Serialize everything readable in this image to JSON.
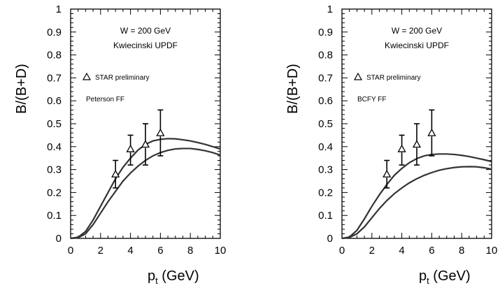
{
  "chart_data": [
    {
      "type": "line",
      "xlabel": "p",
      "xlabel_sub": "t",
      "xlabel_unit": " (GeV)",
      "ylabel": "B/(B+D)",
      "xlim": [
        0,
        10
      ],
      "ylim": [
        0,
        1
      ],
      "xticks": [
        "0",
        "2",
        "4",
        "6",
        "8",
        "10"
      ],
      "yticks": [
        "0",
        "0.1",
        "0.2",
        "0.3",
        "0.4",
        "0.5",
        "0.6",
        "0.7",
        "0.8",
        "0.9",
        "1"
      ],
      "annotations": {
        "line1": "W = 200 GeV",
        "line2": "Kwiecinski UPDF",
        "legend": "STAR preliminary",
        "ff": "Peterson FF"
      },
      "points": [
        {
          "x": 3,
          "y": 0.28,
          "lo": 0.22,
          "hi": 0.34
        },
        {
          "x": 4,
          "y": 0.39,
          "lo": 0.32,
          "hi": 0.45
        },
        {
          "x": 5,
          "y": 0.41,
          "lo": 0.32,
          "hi": 0.5
        },
        {
          "x": 6,
          "y": 0.46,
          "lo": 0.36,
          "hi": 0.56
        }
      ],
      "series": [
        {
          "x": [
            0,
            0.5,
            1,
            1.5,
            2,
            2.5,
            3,
            3.5,
            4,
            4.5,
            5,
            5.5,
            6,
            6.5,
            7,
            7.5,
            8,
            8.5,
            9,
            9.5,
            10
          ],
          "values": [
            0,
            0.005,
            0.03,
            0.08,
            0.14,
            0.2,
            0.26,
            0.31,
            0.35,
            0.385,
            0.41,
            0.425,
            0.432,
            0.435,
            0.434,
            0.43,
            0.425,
            0.418,
            0.41,
            0.4,
            0.39
          ]
        },
        {
          "x": [
            0,
            0.5,
            1,
            1.5,
            2,
            2.5,
            3,
            3.5,
            4,
            4.5,
            5,
            5.5,
            6,
            6.5,
            7,
            7.5,
            8,
            8.5,
            9,
            9.5,
            10
          ],
          "values": [
            0,
            0.003,
            0.02,
            0.06,
            0.11,
            0.16,
            0.205,
            0.25,
            0.285,
            0.315,
            0.34,
            0.36,
            0.374,
            0.384,
            0.39,
            0.392,
            0.392,
            0.388,
            0.382,
            0.374,
            0.363
          ]
        }
      ]
    },
    {
      "type": "line",
      "xlabel": "p",
      "xlabel_sub": "t",
      "xlabel_unit": " (GeV)",
      "ylabel": "B/(B+D)",
      "xlim": [
        0,
        10
      ],
      "ylim": [
        0,
        1
      ],
      "xticks": [
        "0",
        "2",
        "4",
        "6",
        "8",
        "10"
      ],
      "yticks": [
        "0",
        "0.1",
        "0.2",
        "0.3",
        "0.4",
        "0.5",
        "0.6",
        "0.7",
        "0.8",
        "0.9",
        "1"
      ],
      "annotations": {
        "line1": "W = 200 GeV",
        "line2": "Kwiecinski UPDF",
        "legend": "STAR preliminary",
        "ff": "BCFY FF"
      },
      "points": [
        {
          "x": 3,
          "y": 0.28,
          "lo": 0.22,
          "hi": 0.34
        },
        {
          "x": 4,
          "y": 0.39,
          "lo": 0.32,
          "hi": 0.45
        },
        {
          "x": 5,
          "y": 0.41,
          "lo": 0.32,
          "hi": 0.5
        },
        {
          "x": 6,
          "y": 0.46,
          "lo": 0.36,
          "hi": 0.56
        }
      ],
      "series": [
        {
          "x": [
            0,
            0.5,
            1,
            1.5,
            2,
            2.5,
            3,
            3.5,
            4,
            4.5,
            5,
            5.5,
            6,
            6.5,
            7,
            7.5,
            8,
            8.5,
            9,
            9.5,
            10
          ],
          "values": [
            0,
            0.006,
            0.035,
            0.085,
            0.14,
            0.19,
            0.235,
            0.275,
            0.305,
            0.33,
            0.348,
            0.36,
            0.366,
            0.368,
            0.368,
            0.366,
            0.362,
            0.357,
            0.35,
            0.343,
            0.335
          ]
        },
        {
          "x": [
            0,
            0.5,
            1,
            1.5,
            2,
            2.5,
            3,
            3.5,
            4,
            4.5,
            5,
            5.5,
            6,
            6.5,
            7,
            7.5,
            8,
            8.5,
            9,
            9.5,
            10
          ],
          "values": [
            0,
            0.004,
            0.02,
            0.05,
            0.09,
            0.13,
            0.165,
            0.195,
            0.22,
            0.242,
            0.26,
            0.275,
            0.287,
            0.297,
            0.304,
            0.309,
            0.312,
            0.313,
            0.312,
            0.308,
            0.302
          ]
        }
      ]
    }
  ]
}
